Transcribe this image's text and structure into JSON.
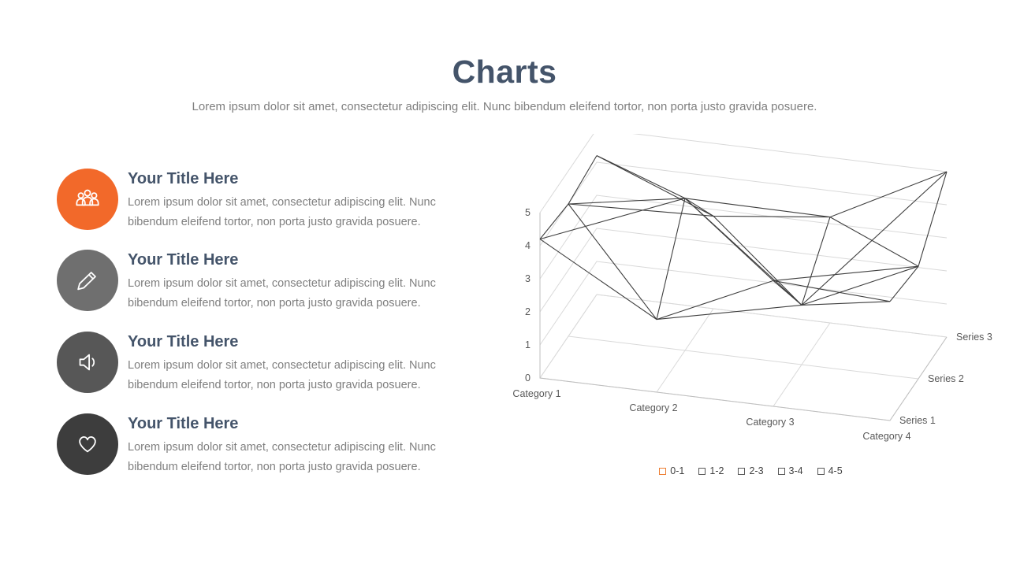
{
  "slide": {
    "title": "Charts",
    "subtitle": "Lorem ipsum dolor sit amet, consectetur adipiscing elit. Nunc bibendum eleifend tortor, non porta justo gravida posuere."
  },
  "items": [
    {
      "icon": "people-icon",
      "color": "#f2692a",
      "title": "Your Title Here",
      "body": "Lorem ipsum dolor sit amet, consectetur adipiscing elit. Nunc bibendum eleifend tortor, non porta justo gravida posuere."
    },
    {
      "icon": "pencil-icon",
      "color": "#6f6f6f",
      "title": "Your Title Here",
      "body": "Lorem ipsum dolor sit amet, consectetur adipiscing elit. Nunc bibendum eleifend tortor, non porta justo gravida posuere."
    },
    {
      "icon": "speaker-icon",
      "color": "#575757",
      "title": "Your Title Here",
      "body": "Lorem ipsum dolor sit amet, consectetur adipiscing elit. Nunc bibendum eleifend tortor, non porta justo gravida posuere."
    },
    {
      "icon": "heart-icon",
      "color": "#3d3d3d",
      "title": "Your Title Here",
      "body": "Lorem ipsum dolor sit amet, consectetur adipiscing elit. Nunc bibendum eleifend tortor, non porta justo gravida posuere."
    }
  ],
  "chart_data": {
    "type": "surface3d-wireframe",
    "categories": [
      "Category 1",
      "Category 2",
      "Category 3",
      "Category 4"
    ],
    "series": [
      {
        "name": "Series 1",
        "values": [
          4.2,
          2.2,
          3.8,
          3.6
        ]
      },
      {
        "name": "Series 2",
        "values": [
          4.0,
          4.6,
          1.8,
          3.4
        ]
      },
      {
        "name": "Series 3",
        "values": [
          4.2,
          2.8,
          3.2,
          5.0
        ]
      }
    ],
    "value_axis": {
      "min": 0,
      "max": 5,
      "ticks": [
        "0",
        "1",
        "2",
        "3",
        "4",
        "5"
      ]
    },
    "legend": [
      {
        "label": "0-1",
        "color": "#ed7d31"
      },
      {
        "label": "1-2",
        "color": "#595959"
      },
      {
        "label": "2-3",
        "color": "#595959"
      },
      {
        "label": "3-4",
        "color": "#595959"
      },
      {
        "label": "4-5",
        "color": "#595959"
      }
    ],
    "legend_position": "bottom",
    "grid_on": true,
    "wire_color": "#3f3f3f",
    "grid_color": "#d9d9d9",
    "axis_line_color": "#bfbfbf",
    "label_color": "#595959"
  }
}
